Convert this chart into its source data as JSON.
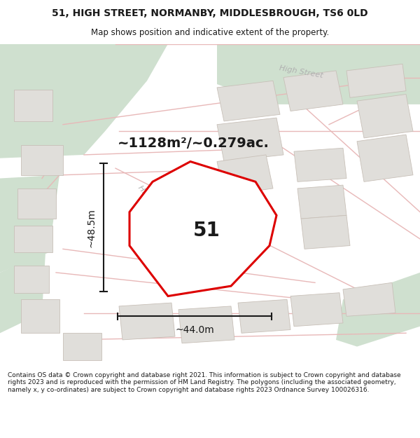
{
  "title_line1": "51, HIGH STREET, NORMANBY, MIDDLESBROUGH, TS6 0LD",
  "title_line2": "Map shows position and indicative extent of the property.",
  "area_text": "~1128m²/~0.279ac.",
  "width_label": "~44.0m",
  "height_label": "~48.5m",
  "number_label": "51",
  "footer_text": "Contains OS data © Crown copyright and database right 2021. This information is subject to Crown copyright and database rights 2023 and is reproduced with the permission of HM Land Registry. The polygons (including the associated geometry, namely x, y co-ordinates) are subject to Crown copyright and database rights 2023 Ordnance Survey 100026316.",
  "map_bg": "#ffffff",
  "green_color": "#cfe0cf",
  "road_outline_color": "#e8b8b8",
  "building_fill": "#e0deda",
  "building_edge": "#c8c0b8",
  "plot_color": "#dd0000",
  "text_color": "#1a1a1a",
  "road_label_color": "#b0b0b0",
  "dim_color": "#1a1a1a",
  "title_fontsize": 10,
  "subtitle_fontsize": 8.5,
  "area_fontsize": 14,
  "label_fontsize": 20,
  "dim_fontsize": 10,
  "road_fontsize": 8,
  "footer_fontsize": 6.5
}
